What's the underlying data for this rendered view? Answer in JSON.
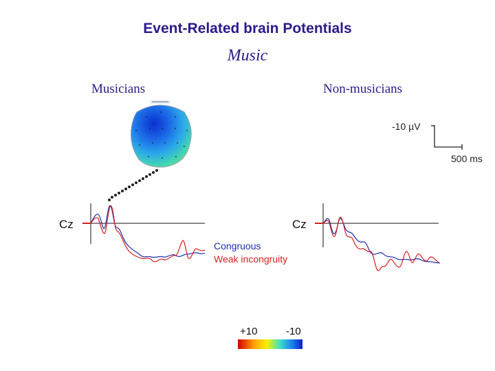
{
  "title": "Event-Related brain Potentials",
  "subtitle": "Music",
  "groups": {
    "left": "Musicians",
    "right": "Non-musicians"
  },
  "scale": {
    "amplitude": "-10 µV",
    "time": "500 ms"
  },
  "channels": {
    "left": "Cz",
    "right": "Cz"
  },
  "legend": {
    "congruous": {
      "label": "Congruous",
      "color": "#1f2fa8"
    },
    "weak": {
      "label": "Weak incongruity",
      "color": "#d61f1f"
    }
  },
  "colorbar": {
    "min_label": "+10",
    "max_label": "-10"
  },
  "colors": {
    "title": "#2b1a8c",
    "map_blue": "#1446d8",
    "map_green": "#5fd46a"
  }
}
